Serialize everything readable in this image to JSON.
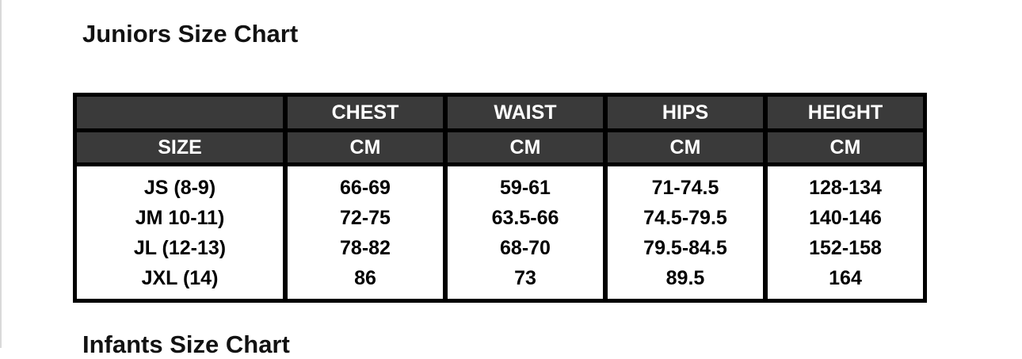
{
  "page": {
    "title": "Juniors Size Chart",
    "next_section_title": "Infants Size Chart"
  },
  "colors": {
    "header_bg": "#3a3a3a",
    "table_border": "#000000",
    "header_text": "#ffffff",
    "body_text": "#000000",
    "page_bg": "#ffffff"
  },
  "size_table": {
    "measure_headers": [
      "CHEST",
      "WAIST",
      "HIPS",
      "HEIGHT"
    ],
    "unit_row": {
      "size_label": "SIZE",
      "units": [
        "CM",
        "CM",
        "CM",
        "CM"
      ]
    },
    "rows": [
      {
        "size": "JS (8-9)",
        "chest": "66-69",
        "waist": "59-61",
        "hips": "71-74.5",
        "height": "128-134"
      },
      {
        "size": "JM 10-11)",
        "chest": "72-75",
        "waist": "63.5-66",
        "hips": "74.5-79.5",
        "height": "140-146"
      },
      {
        "size": "JL (12-13)",
        "chest": "78-82",
        "waist": "68-70",
        "hips": "79.5-84.5",
        "height": "152-158"
      },
      {
        "size": "JXL (14)",
        "chest": "86",
        "waist": "73",
        "hips": "89.5",
        "height": "164"
      }
    ]
  }
}
